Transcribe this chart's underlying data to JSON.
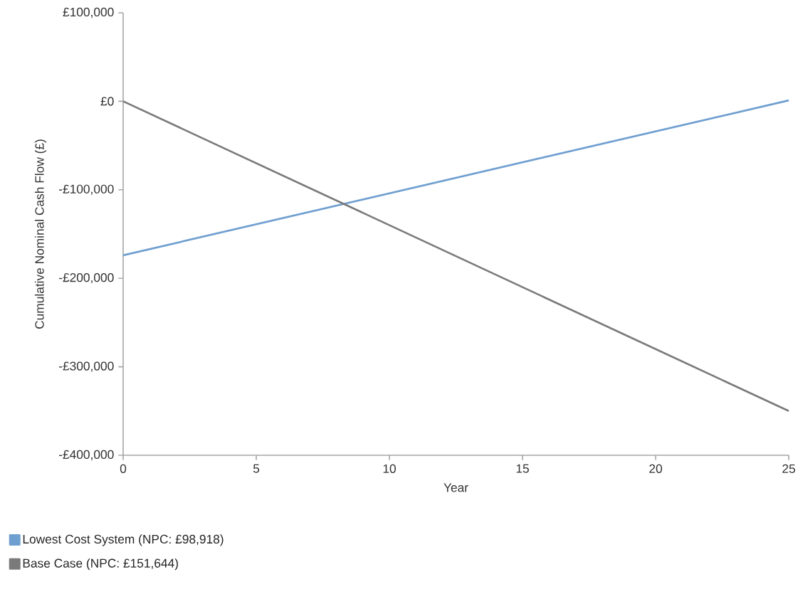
{
  "chart_data": {
    "type": "line",
    "xlabel": "Year",
    "ylabel": "Cumulative Nominal Cash Flow (£)",
    "x": [
      0,
      25
    ],
    "series": [
      {
        "name": "Lowest Cost System (NPC: £98,918)",
        "color": "#6f9fd0",
        "values": [
          -174000,
          1000
        ]
      },
      {
        "name": "Base Case (NPC: £151,644)",
        "color": "#7a7a7a",
        "values": [
          0,
          -350000
        ]
      }
    ],
    "xlim": [
      0,
      25
    ],
    "xticks": [
      0,
      5,
      10,
      15,
      20,
      25
    ],
    "ylim": [
      -400000,
      100000
    ],
    "yticks": [
      {
        "value": -400000,
        "label": "-£400,000"
      },
      {
        "value": -300000,
        "label": "-£300,000"
      },
      {
        "value": -200000,
        "label": "-£200,000"
      },
      {
        "value": -100000,
        "label": "-£100,000"
      },
      {
        "value": 0,
        "label": "£0"
      },
      {
        "value": 100000,
        "label": "£100,000"
      }
    ],
    "grid": false,
    "legend": "bottom left",
    "marker": "none",
    "line_style": "solid"
  }
}
